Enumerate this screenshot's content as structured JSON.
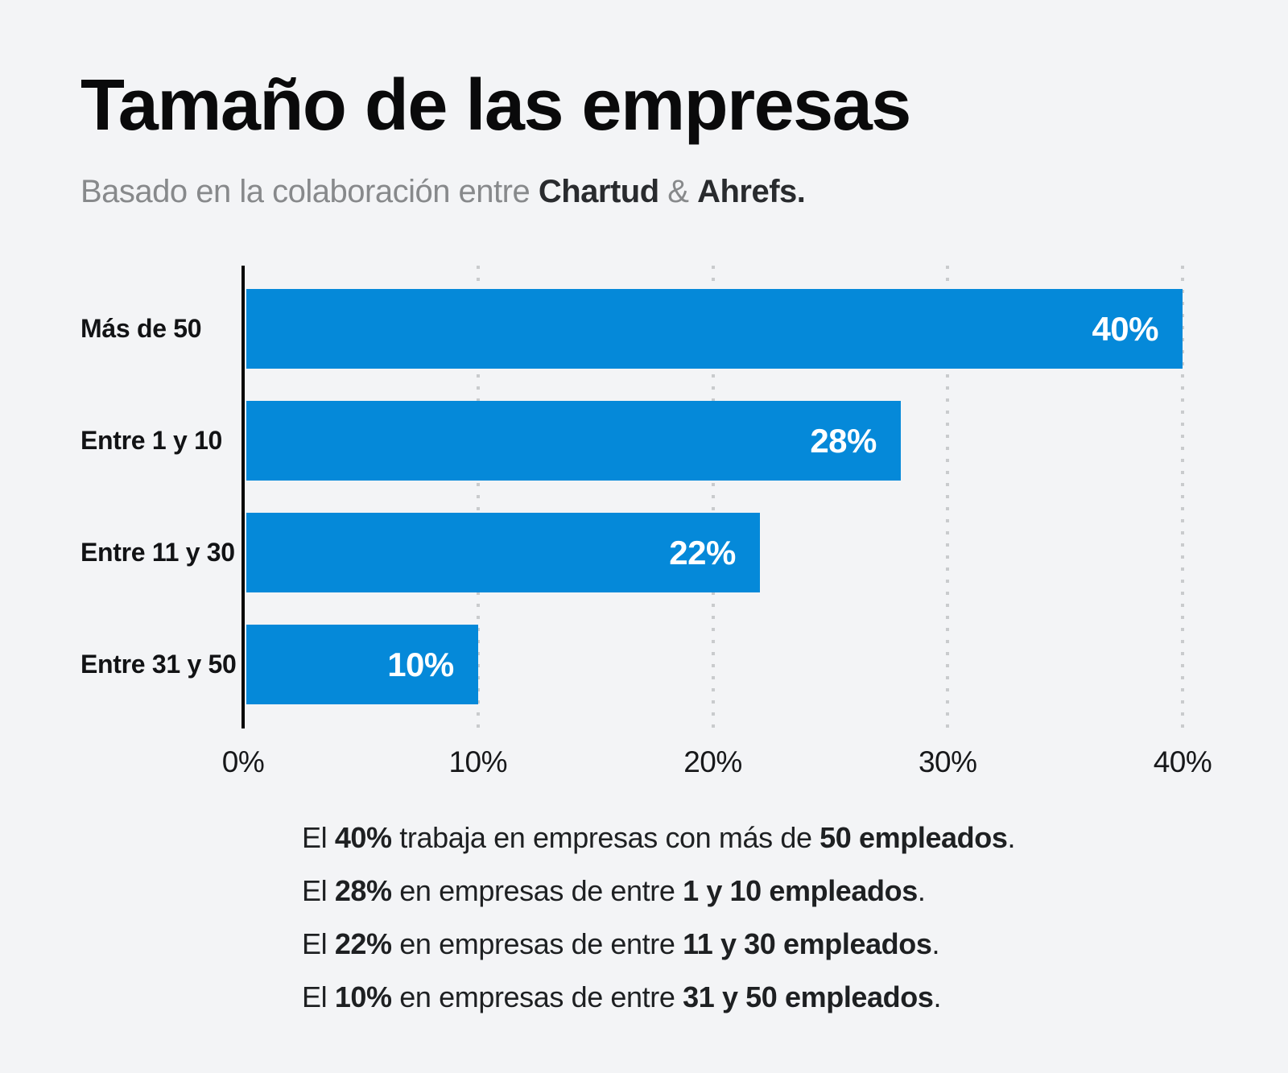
{
  "colors": {
    "background": "#f3f4f6",
    "bar_blue": "#0589d9",
    "axis_black": "#040404",
    "gridline_gray": "#c9cbcd",
    "title_color": "#0a0a0b",
    "subtitle_gray": "#87898b",
    "subtitle_dark": "#292b2e",
    "value_label_white": "#ffffff",
    "text_dark": "#1e2022"
  },
  "header": {
    "title": "Tamaño de las empresas",
    "subtitle": {
      "prefix": "Basado en la colaboración entre ",
      "brand1": "Chartud",
      "separator": " & ",
      "brand2": "Ahrefs",
      "suffix": "."
    }
  },
  "chart_data": {
    "type": "bar",
    "orientation": "horizontal",
    "title": "Tamaño de las empresas",
    "categories": [
      "Más de 50",
      "Entre 1 y 10",
      "Entre 11 y 30",
      "Entre 31 y 50"
    ],
    "values": [
      40,
      28,
      22,
      10
    ],
    "value_labels": [
      "40%",
      "28%",
      "22%",
      "10%"
    ],
    "x_ticks": [
      {
        "label": "0%",
        "value": 0
      },
      {
        "label": "10%",
        "value": 10
      },
      {
        "label": "20%",
        "value": 20
      },
      {
        "label": "30%",
        "value": 30
      },
      {
        "label": "40%",
        "value": 40
      }
    ],
    "xlim": [
      0,
      40
    ],
    "xlabel": "",
    "ylabel": "",
    "legend": "none",
    "grid": "dotted-vertical",
    "bar_color": "#0589d9"
  },
  "summary": {
    "lines": [
      {
        "segments": [
          {
            "text": "El ",
            "bold": false
          },
          {
            "text": "40%",
            "bold": true
          },
          {
            "text": " trabaja en empresas con más de ",
            "bold": false
          },
          {
            "text": "50 empleados",
            "bold": true
          },
          {
            "text": ".",
            "bold": false
          }
        ]
      },
      {
        "segments": [
          {
            "text": "El ",
            "bold": false
          },
          {
            "text": "28%",
            "bold": true
          },
          {
            "text": " en empresas de entre ",
            "bold": false
          },
          {
            "text": "1 y 10 empleados",
            "bold": true
          },
          {
            "text": ".",
            "bold": false
          }
        ]
      },
      {
        "segments": [
          {
            "text": "El ",
            "bold": false
          },
          {
            "text": "22%",
            "bold": true
          },
          {
            "text": " en empresas de entre ",
            "bold": false
          },
          {
            "text": "11 y 30 empleados",
            "bold": true
          },
          {
            "text": ".",
            "bold": false
          }
        ]
      },
      {
        "segments": [
          {
            "text": "El ",
            "bold": false
          },
          {
            "text": "10%",
            "bold": true
          },
          {
            "text": " en empresas de entre ",
            "bold": false
          },
          {
            "text": "31 y 50 empleados",
            "bold": true
          },
          {
            "text": ".",
            "bold": false
          }
        ]
      }
    ]
  }
}
